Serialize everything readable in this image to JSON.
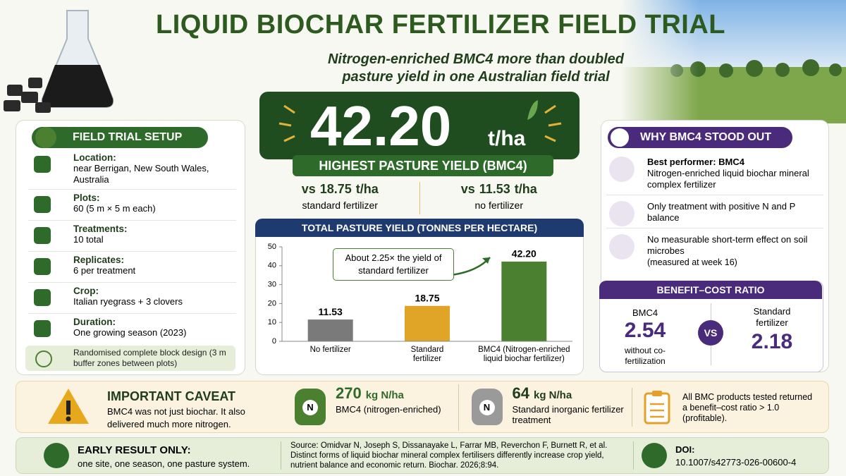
{
  "header": {
    "title": "LIQUID BIOCHAR FERTILIZER FIELD TRIAL",
    "subtitle": "Nitrogen-enriched BMC4 more than doubled pasture yield in one Australian field trial"
  },
  "hero": {
    "value": "42.20",
    "unit": "t/ha",
    "label": "HIGHEST PASTURE YIELD (BMC4)",
    "comparisons": [
      {
        "prefix": "vs",
        "value": "18.75",
        "unit": "t/ha",
        "label": "standard fertilizer"
      },
      {
        "prefix": "vs",
        "value": "11.53",
        "unit": "t/ha",
        "label": "no fertilizer"
      }
    ]
  },
  "setup": {
    "title": "FIELD TRIAL SETUP",
    "items": [
      {
        "label": "Location:",
        "text": "near Berrigan, New South Wales, Australia"
      },
      {
        "label": "Plots:",
        "text": "60 (5 m × 5 m each)"
      },
      {
        "label": "Treatments:",
        "text": "10 total"
      },
      {
        "label": "Replicates:",
        "text": "6 per treatment"
      },
      {
        "label": "Crop:",
        "text": "Italian ryegrass + 3 clovers"
      },
      {
        "label": "Duration:",
        "text": "One growing season (2023)"
      }
    ],
    "note": "Randomised complete block design (3 m buffer zones between plots)"
  },
  "chart_data": {
    "type": "bar",
    "title": "TOTAL PASTURE YIELD (TONNES PER HECTARE)",
    "categories": [
      "No fertilizer",
      "Standard fertilizer",
      "BMC4 (Nitrogen-enriched liquid biochar fertilizer)"
    ],
    "values": [
      11.53,
      18.75,
      42.2
    ],
    "value_labels": [
      "11.53",
      "18.75",
      "42.20"
    ],
    "colors": [
      "#7a7a7a",
      "#e0a526",
      "#4b8030"
    ],
    "ylim": [
      0,
      50
    ],
    "yticks": [
      0,
      10,
      20,
      30,
      40,
      50
    ],
    "annotation": "About 2.25× the yield of standard fertilizer"
  },
  "why": {
    "title": "WHY BMC4 STOOD OUT",
    "items": [
      {
        "title": "Best performer: BMC4",
        "text": "Nitrogen-enriched liquid biochar mineral complex fertilizer"
      },
      {
        "text": "Only treatment with positive N and P balance"
      },
      {
        "text": "No measurable short-term effect on soil microbes",
        "note": "(measured at week 16)"
      }
    ]
  },
  "bcr": {
    "title": "BENEFIT–COST RATIO",
    "left": {
      "label": "BMC4",
      "value": "2.54",
      "note": "without co-fertilization"
    },
    "vs": "VS",
    "right": {
      "label": "Standard fertilizer",
      "value": "2.18"
    }
  },
  "caveat": {
    "title": "IMPORTANT CAVEAT",
    "text": "BMC4 was not just biochar. It also delivered much more nitrogen."
  },
  "nitrogen": [
    {
      "icon": "N",
      "value": "270",
      "unit": "kg N/ha",
      "label": "BMC4 (nitrogen-enriched)"
    },
    {
      "icon": "N",
      "value": "64",
      "unit": "kg N/ha",
      "label": "Standard inorganic fertilizer treatment"
    }
  ],
  "profit": "All BMC products tested returned a benefit–cost ratio > 1.0 (profitable).",
  "footer": {
    "early_title": "EARLY RESULT ONLY:",
    "early_text": "one site, one season, one pasture system.",
    "source": "Source: Omidvar N, Joseph S, Dissanayake L, Farrar MB, Reverchon F, Burnett R, et al. Distinct forms of liquid biochar mineral complex fertilisers differently increase crop yield, nutrient balance and economic return. Biochar. 2026;8:94.",
    "doi_label": "DOI:",
    "doi": "10.1007/s42773-026-00600-4"
  }
}
